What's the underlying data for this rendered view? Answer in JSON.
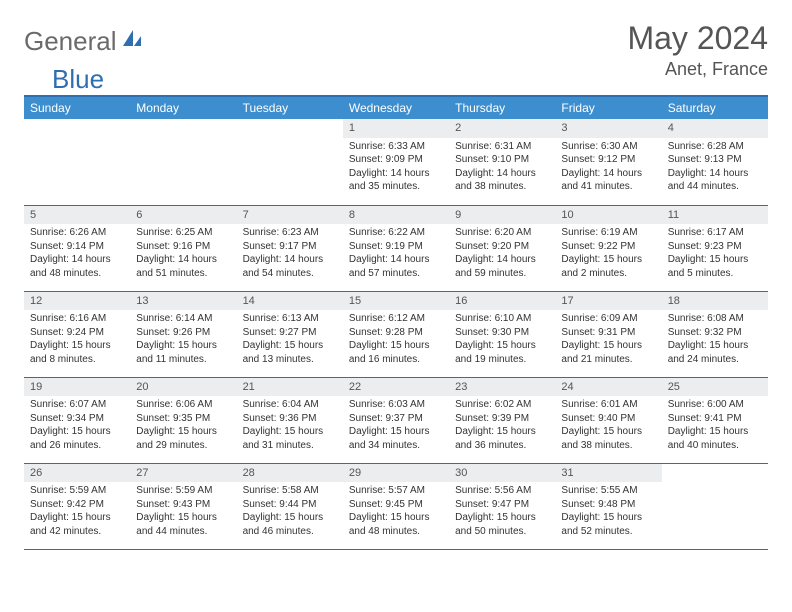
{
  "logo": {
    "general": "General",
    "blue": "Blue"
  },
  "title": "May 2024",
  "location": "Anet, France",
  "colors": {
    "header_bg": "#3d8ecf",
    "border": "#2f6fb0",
    "daynum_bg": "#ecedee",
    "text": "#333333",
    "muted": "#555555",
    "logo_gray": "#6a6a6a",
    "logo_blue": "#2f6fb0"
  },
  "headers": [
    "Sunday",
    "Monday",
    "Tuesday",
    "Wednesday",
    "Thursday",
    "Friday",
    "Saturday"
  ],
  "weeks": [
    [
      {
        "n": "",
        "t": ""
      },
      {
        "n": "",
        "t": ""
      },
      {
        "n": "",
        "t": ""
      },
      {
        "n": "1",
        "t": "Sunrise: 6:33 AM\nSunset: 9:09 PM\nDaylight: 14 hours and 35 minutes."
      },
      {
        "n": "2",
        "t": "Sunrise: 6:31 AM\nSunset: 9:10 PM\nDaylight: 14 hours and 38 minutes."
      },
      {
        "n": "3",
        "t": "Sunrise: 6:30 AM\nSunset: 9:12 PM\nDaylight: 14 hours and 41 minutes."
      },
      {
        "n": "4",
        "t": "Sunrise: 6:28 AM\nSunset: 9:13 PM\nDaylight: 14 hours and 44 minutes."
      }
    ],
    [
      {
        "n": "5",
        "t": "Sunrise: 6:26 AM\nSunset: 9:14 PM\nDaylight: 14 hours and 48 minutes."
      },
      {
        "n": "6",
        "t": "Sunrise: 6:25 AM\nSunset: 9:16 PM\nDaylight: 14 hours and 51 minutes."
      },
      {
        "n": "7",
        "t": "Sunrise: 6:23 AM\nSunset: 9:17 PM\nDaylight: 14 hours and 54 minutes."
      },
      {
        "n": "8",
        "t": "Sunrise: 6:22 AM\nSunset: 9:19 PM\nDaylight: 14 hours and 57 minutes."
      },
      {
        "n": "9",
        "t": "Sunrise: 6:20 AM\nSunset: 9:20 PM\nDaylight: 14 hours and 59 minutes."
      },
      {
        "n": "10",
        "t": "Sunrise: 6:19 AM\nSunset: 9:22 PM\nDaylight: 15 hours and 2 minutes."
      },
      {
        "n": "11",
        "t": "Sunrise: 6:17 AM\nSunset: 9:23 PM\nDaylight: 15 hours and 5 minutes."
      }
    ],
    [
      {
        "n": "12",
        "t": "Sunrise: 6:16 AM\nSunset: 9:24 PM\nDaylight: 15 hours and 8 minutes."
      },
      {
        "n": "13",
        "t": "Sunrise: 6:14 AM\nSunset: 9:26 PM\nDaylight: 15 hours and 11 minutes."
      },
      {
        "n": "14",
        "t": "Sunrise: 6:13 AM\nSunset: 9:27 PM\nDaylight: 15 hours and 13 minutes."
      },
      {
        "n": "15",
        "t": "Sunrise: 6:12 AM\nSunset: 9:28 PM\nDaylight: 15 hours and 16 minutes."
      },
      {
        "n": "16",
        "t": "Sunrise: 6:10 AM\nSunset: 9:30 PM\nDaylight: 15 hours and 19 minutes."
      },
      {
        "n": "17",
        "t": "Sunrise: 6:09 AM\nSunset: 9:31 PM\nDaylight: 15 hours and 21 minutes."
      },
      {
        "n": "18",
        "t": "Sunrise: 6:08 AM\nSunset: 9:32 PM\nDaylight: 15 hours and 24 minutes."
      }
    ],
    [
      {
        "n": "19",
        "t": "Sunrise: 6:07 AM\nSunset: 9:34 PM\nDaylight: 15 hours and 26 minutes."
      },
      {
        "n": "20",
        "t": "Sunrise: 6:06 AM\nSunset: 9:35 PM\nDaylight: 15 hours and 29 minutes."
      },
      {
        "n": "21",
        "t": "Sunrise: 6:04 AM\nSunset: 9:36 PM\nDaylight: 15 hours and 31 minutes."
      },
      {
        "n": "22",
        "t": "Sunrise: 6:03 AM\nSunset: 9:37 PM\nDaylight: 15 hours and 34 minutes."
      },
      {
        "n": "23",
        "t": "Sunrise: 6:02 AM\nSunset: 9:39 PM\nDaylight: 15 hours and 36 minutes."
      },
      {
        "n": "24",
        "t": "Sunrise: 6:01 AM\nSunset: 9:40 PM\nDaylight: 15 hours and 38 minutes."
      },
      {
        "n": "25",
        "t": "Sunrise: 6:00 AM\nSunset: 9:41 PM\nDaylight: 15 hours and 40 minutes."
      }
    ],
    [
      {
        "n": "26",
        "t": "Sunrise: 5:59 AM\nSunset: 9:42 PM\nDaylight: 15 hours and 42 minutes."
      },
      {
        "n": "27",
        "t": "Sunrise: 5:59 AM\nSunset: 9:43 PM\nDaylight: 15 hours and 44 minutes."
      },
      {
        "n": "28",
        "t": "Sunrise: 5:58 AM\nSunset: 9:44 PM\nDaylight: 15 hours and 46 minutes."
      },
      {
        "n": "29",
        "t": "Sunrise: 5:57 AM\nSunset: 9:45 PM\nDaylight: 15 hours and 48 minutes."
      },
      {
        "n": "30",
        "t": "Sunrise: 5:56 AM\nSunset: 9:47 PM\nDaylight: 15 hours and 50 minutes."
      },
      {
        "n": "31",
        "t": "Sunrise: 5:55 AM\nSunset: 9:48 PM\nDaylight: 15 hours and 52 minutes."
      },
      {
        "n": "",
        "t": ""
      }
    ]
  ]
}
